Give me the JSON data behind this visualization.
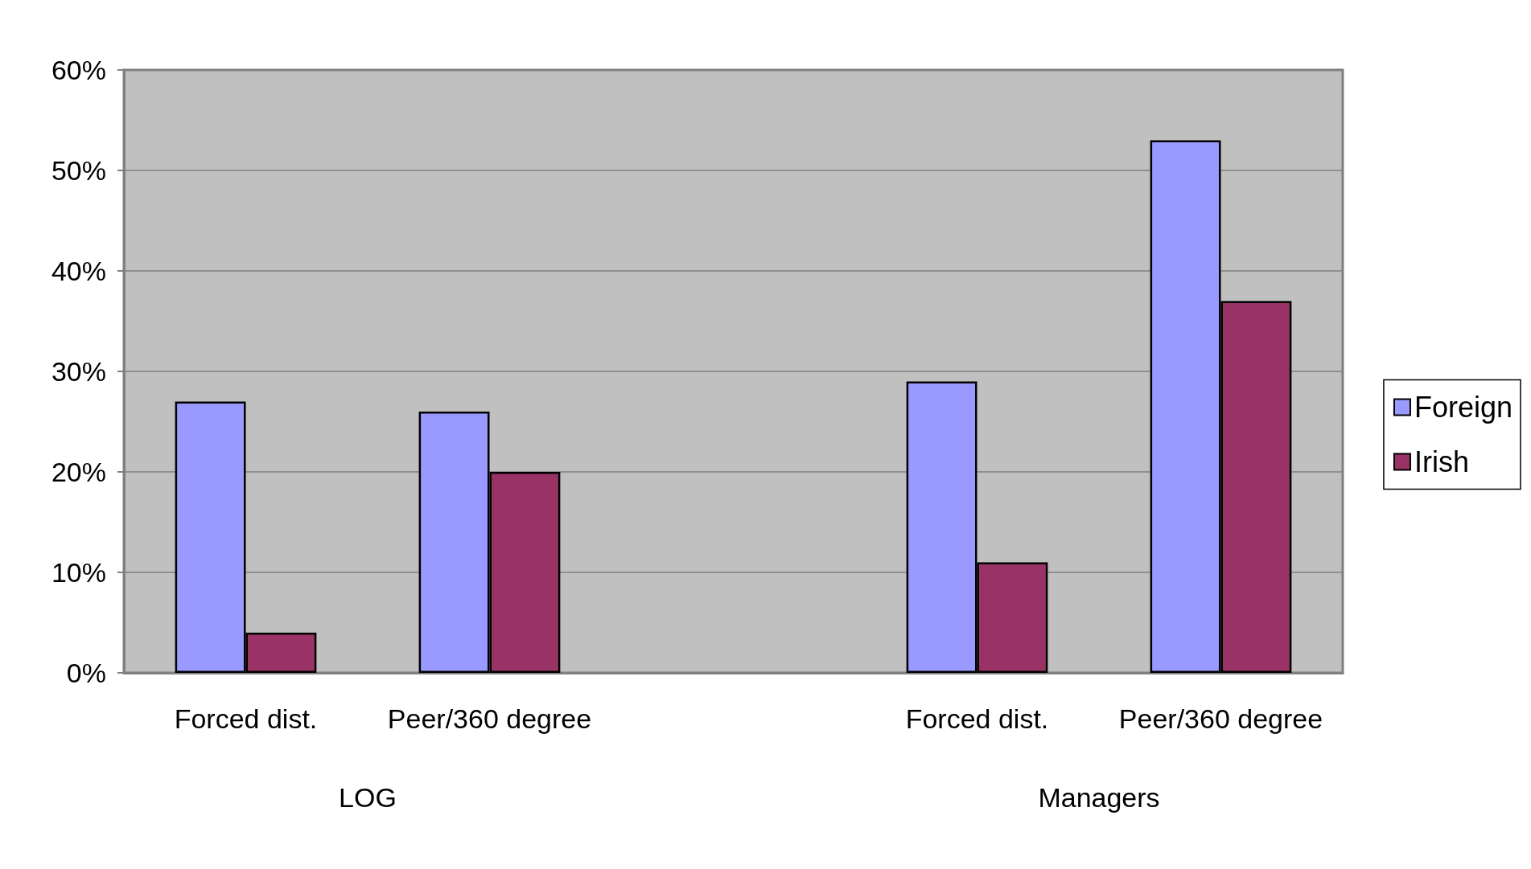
{
  "chart_data": {
    "type": "bar",
    "categories": [
      "Forced dist.",
      "Peer/360 degree",
      null,
      "Forced dist.",
      "Peer/360 degree"
    ],
    "series": [
      {
        "name": "Foreign",
        "color": "#9999ff",
        "values": [
          27,
          26,
          null,
          29,
          53
        ]
      },
      {
        "name": "Irish",
        "color": "#993366",
        "values": [
          4,
          20,
          null,
          11,
          37
        ]
      }
    ],
    "ylim": [
      0,
      60
    ],
    "yticks": [
      {
        "value": 0,
        "label": "0%"
      },
      {
        "value": 10,
        "label": "10%"
      },
      {
        "value": 20,
        "label": "20%"
      },
      {
        "value": 30,
        "label": "30%"
      },
      {
        "value": 40,
        "label": "40%"
      },
      {
        "value": 50,
        "label": "50%"
      },
      {
        "value": 60,
        "label": "60%"
      }
    ],
    "annotations": [
      "LOG",
      "Managers"
    ],
    "grid": "y",
    "legend": "right"
  }
}
